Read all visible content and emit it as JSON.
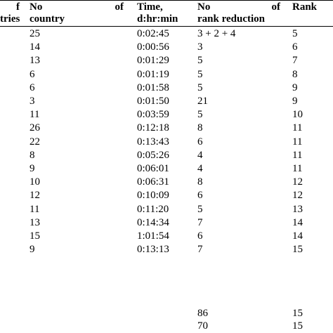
{
  "headers": {
    "col0": {
      "line1": "f",
      "line2": "tries"
    },
    "col1": {
      "line1_a": "No",
      "line1_b": "of",
      "line2": "country"
    },
    "col2": {
      "line1": "Time,",
      "line2": "d:hr:min"
    },
    "col3": {
      "line1_a": "No",
      "line1_b": "of",
      "line2": "rank reduction"
    },
    "col4": {
      "line1": "Rank",
      "line2": ""
    }
  },
  "rows": [
    {
      "country": "25",
      "time": "0:02:45",
      "reduction": "3 + 2 + 4",
      "rank": "5"
    },
    {
      "country": "14",
      "time": "0:00:56",
      "reduction": "3",
      "rank": "6"
    },
    {
      "country": "13",
      "time": "0:01:29",
      "reduction": "5",
      "rank": "7"
    },
    {
      "country": "6",
      "time": "0:01:19",
      "reduction": "5",
      "rank": "8"
    },
    {
      "country": "6",
      "time": "0:01:58",
      "reduction": "5",
      "rank": "9"
    },
    {
      "country": "3",
      "time": "0:01:50",
      "reduction": "21",
      "rank": "9"
    },
    {
      "country": "11",
      "time": "0:03:59",
      "reduction": "5",
      "rank": "10"
    },
    {
      "country": "26",
      "time": "0:12:18",
      "reduction": "8",
      "rank": "11"
    },
    {
      "country": "22",
      "time": "0:13:43",
      "reduction": "6",
      "rank": "11"
    },
    {
      "country": "8",
      "time": "0:05:26",
      "reduction": "4",
      "rank": "11"
    },
    {
      "country": "9",
      "time": "0:06:01",
      "reduction": "4",
      "rank": "11"
    },
    {
      "country": "10",
      "time": "0:06:31",
      "reduction": "8",
      "rank": "12"
    },
    {
      "country": "12",
      "time": "0:10:09",
      "reduction": "6",
      "rank": "12"
    },
    {
      "country": "11",
      "time": "0:11:20",
      "reduction": "5",
      "rank": "13"
    },
    {
      "country": "13",
      "time": "0:14:34",
      "reduction": "7",
      "rank": "14"
    },
    {
      "country": "15",
      "time": "1:01:54",
      "reduction": "6",
      "rank": "14"
    },
    {
      "country": "9",
      "time": "0:13:13",
      "reduction": "7",
      "rank": "15"
    }
  ],
  "summary": [
    {
      "reduction": "86",
      "rank": "15"
    },
    {
      "reduction": "70",
      "rank": "15"
    }
  ]
}
